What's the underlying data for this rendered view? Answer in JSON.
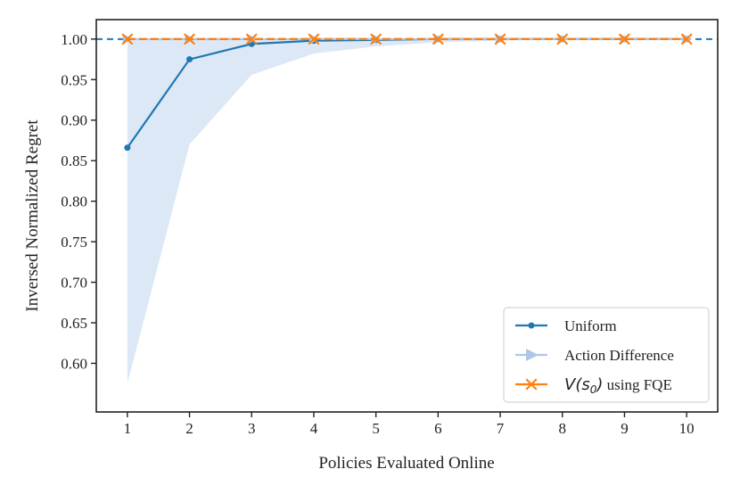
{
  "chart_data": {
    "type": "line",
    "title": "",
    "xlabel": "Policies Evaluated Online",
    "ylabel": "Inversed Normalized Regret",
    "x": [
      1,
      2,
      3,
      4,
      5,
      6,
      7,
      8,
      9,
      10
    ],
    "xlim": [
      0.5,
      10.5
    ],
    "ylim": [
      0.54,
      1.024
    ],
    "xticks": [
      "1",
      "2",
      "3",
      "4",
      "5",
      "6",
      "7",
      "8",
      "9",
      "10"
    ],
    "yticks": [
      "0.60",
      "0.65",
      "0.70",
      "0.75",
      "0.80",
      "0.85",
      "0.90",
      "0.95",
      "1.00"
    ],
    "ytick_values": [
      0.6,
      0.65,
      0.7,
      0.75,
      0.8,
      0.85,
      0.9,
      0.95,
      1.0
    ],
    "reference_line": {
      "y": 1.0,
      "style": "dashed",
      "color": "#1f77b4"
    },
    "series": [
      {
        "name": "Uniform",
        "color": "#1f77b4",
        "marker": "circle",
        "values": [
          0.866,
          0.975,
          0.994,
          0.998,
          0.999,
          1.0,
          1.0,
          1.0,
          1.0,
          1.0
        ],
        "band_lower": [
          0.575,
          0.87,
          0.956,
          0.982,
          0.991,
          0.996,
          0.998,
          1.0,
          1.0,
          1.0
        ],
        "band_upper": [
          1.0,
          1.0,
          1.0,
          1.0,
          1.0,
          1.0,
          1.0,
          1.0,
          1.0,
          1.0
        ],
        "band_color": "#dce8f5"
      },
      {
        "name": "Action Difference",
        "color": "#aec7e8",
        "marker": "triangle-right",
        "values": [
          1.0,
          1.0,
          1.0,
          1.0,
          1.0,
          1.0,
          1.0,
          1.0,
          1.0,
          1.0
        ]
      },
      {
        "name_math": "V(s",
        "name_sub": "0",
        "name_close": ")",
        "name_rest": " using FQE",
        "color": "#ff7f0e",
        "marker": "x-filled",
        "values": [
          1.0,
          1.0,
          1.0,
          1.0,
          1.0,
          1.0,
          1.0,
          1.0,
          1.0,
          1.0
        ]
      }
    ],
    "legend_position": "bottom-right",
    "grid": false
  }
}
